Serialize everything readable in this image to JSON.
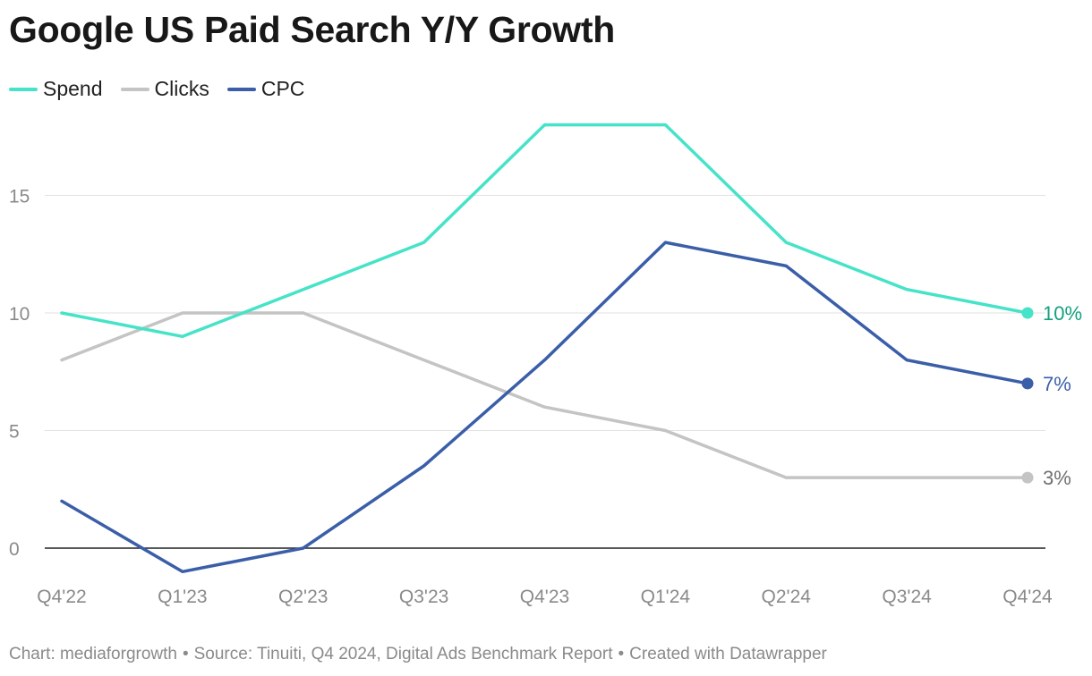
{
  "chart_data": {
    "type": "line",
    "title": "Google US Paid Search Y/Y Growth",
    "categories": [
      "Q4'22",
      "Q1'23",
      "Q2'23",
      "Q3'23",
      "Q4'23",
      "Q1'24",
      "Q2'24",
      "Q3'24",
      "Q4'24"
    ],
    "series": [
      {
        "name": "Spend",
        "color": "#46e3c8",
        "label_color": "#12a07e",
        "values": [
          10,
          9,
          11,
          13,
          18,
          18,
          13,
          11,
          10
        ],
        "end_label": "10%"
      },
      {
        "name": "Clicks",
        "color": "#c4c4c4",
        "label_color": "#707070",
        "values": [
          8,
          10,
          10,
          8,
          6,
          5,
          3,
          3,
          3
        ],
        "end_label": "3%"
      },
      {
        "name": "CPC",
        "color": "#3a5ea8",
        "label_color": "#3a5ea8",
        "values": [
          2,
          -1,
          0,
          3.5,
          8,
          13,
          12,
          8,
          7
        ],
        "end_label": "7%"
      }
    ],
    "yticks": [
      0,
      5,
      10,
      15
    ],
    "ylim": [
      -1,
      18
    ],
    "grid": true,
    "legend_position": "top-left"
  },
  "footer": {
    "chart_credit": "Chart: mediaforgrowth",
    "separator": "•",
    "source": "Source: Tinuiti, Q4 2024, Digital Ads Benchmark Report",
    "created_with": "Created with Datawrapper"
  }
}
